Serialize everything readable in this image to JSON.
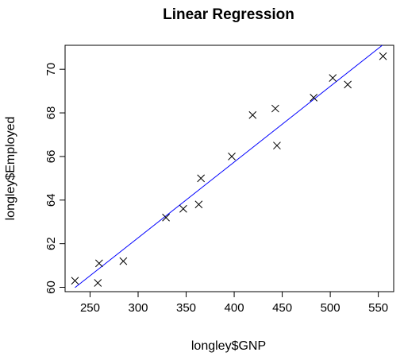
{
  "chart_data": {
    "type": "scatter",
    "title": "Linear Regression",
    "xlabel": "longley$GNP",
    "ylabel": "longley$Employed",
    "xlim": [
      224.0,
      566.0
    ],
    "ylim": [
      59.8,
      71.1
    ],
    "xticks": [
      250,
      300,
      350,
      400,
      450,
      500,
      550
    ],
    "yticks": [
      60,
      62,
      64,
      66,
      68,
      70
    ],
    "marker": "x",
    "grid": false,
    "points": [
      {
        "x": 234.3,
        "y": 60.3
      },
      {
        "x": 259.4,
        "y": 61.1
      },
      {
        "x": 258.1,
        "y": 60.2
      },
      {
        "x": 284.6,
        "y": 61.2
      },
      {
        "x": 329.0,
        "y": 63.2
      },
      {
        "x": 347.0,
        "y": 63.6
      },
      {
        "x": 365.4,
        "y": 65.0
      },
      {
        "x": 363.1,
        "y": 63.8
      },
      {
        "x": 397.5,
        "y": 66.0
      },
      {
        "x": 419.2,
        "y": 67.9
      },
      {
        "x": 442.8,
        "y": 68.2
      },
      {
        "x": 444.5,
        "y": 66.5
      },
      {
        "x": 482.7,
        "y": 68.7
      },
      {
        "x": 502.6,
        "y": 69.6
      },
      {
        "x": 518.2,
        "y": 69.3
      },
      {
        "x": 554.9,
        "y": 70.6
      }
    ],
    "regression_line": {
      "intercept": 51.8436,
      "slope": 0.03475,
      "color": "#0000ff"
    }
  }
}
